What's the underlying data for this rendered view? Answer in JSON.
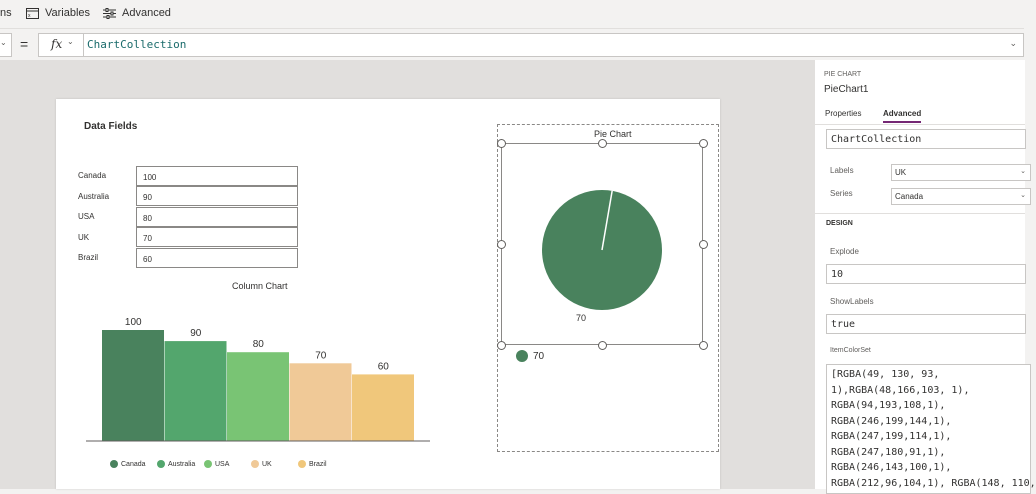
{
  "topbar": {
    "items": [
      {
        "label": "ns",
        "icon": "none"
      },
      {
        "label": "Variables",
        "icon": "variables-icon"
      },
      {
        "label": "Advanced",
        "icon": "sliders-icon"
      }
    ]
  },
  "formula": {
    "equals": "=",
    "fx": "fx",
    "value": "ChartCollection"
  },
  "data_fields": {
    "title": "Data Fields",
    "rows": [
      {
        "label": "Canada",
        "value": "100"
      },
      {
        "label": "Australia",
        "value": "90"
      },
      {
        "label": "USA",
        "value": "80"
      },
      {
        "label": "UK",
        "value": "70"
      },
      {
        "label": "Brazil",
        "value": "60"
      }
    ]
  },
  "chart_data": [
    {
      "type": "bar",
      "title": "Column Chart",
      "categories": [
        "Canada",
        "Australia",
        "USA",
        "UK",
        "Brazil"
      ],
      "values": [
        100,
        90,
        80,
        70,
        60
      ],
      "colors": [
        "#49825d",
        "#53a66d",
        "#79c474",
        "#f0c997",
        "#f0c77b"
      ],
      "ylim": [
        0,
        100
      ],
      "grid": false,
      "legend": "bottom"
    },
    {
      "type": "pie",
      "title": "Pie Chart",
      "categories": [
        "70"
      ],
      "values": [
        70
      ],
      "colors": [
        "#49825d"
      ],
      "legend": "bottom-left"
    }
  ],
  "panel": {
    "type_label": "PIE CHART",
    "control_name": "PieChart1",
    "tabs": [
      "Properties",
      "Advanced"
    ],
    "items_value": "ChartCollection",
    "labels_label": "Labels",
    "labels_value": "UK",
    "series_label": "Series",
    "series_value": "Canada",
    "design_label": "DESIGN",
    "explode_label": "Explode",
    "explode_value": "10",
    "showlabels_label": "ShowLabels",
    "showlabels_value": "true",
    "itemcolorset_label": "ItemColorSet",
    "itemcolorset_value": "[RGBA(49, 130, 93,\n1),RGBA(48,166,103, 1),\nRGBA(94,193,108,1),\nRGBA(246,199,144,1),\nRGBA(247,199,114,1),\nRGBA(247,180,91,1),\nRGBA(246,143,100,1),\nRGBA(212,96,104,1), RGBA(148, 110,"
  }
}
